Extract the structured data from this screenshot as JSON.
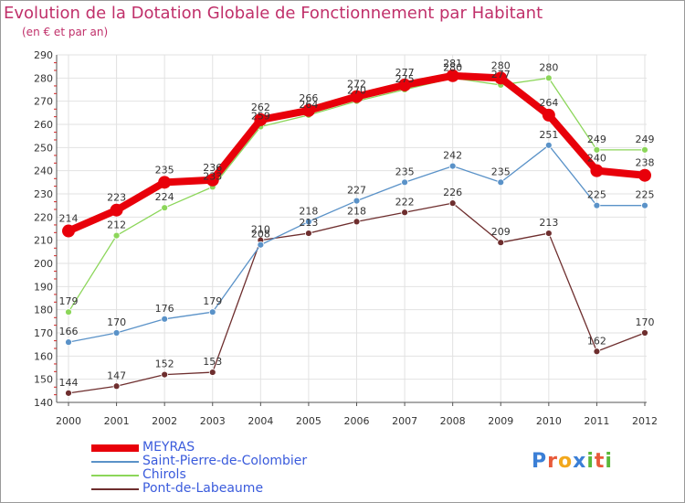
{
  "title": "Evolution de la Dotation Globale de Fonctionnement par Habitant",
  "subtitle": "(en € et par an)",
  "brand": {
    "text": "Proxiti",
    "colors": [
      "#3b7fd6",
      "#e85a3a",
      "#f2a81d",
      "#3b7fd6",
      "#5ab83a",
      "#e85a3a",
      "#5ab83a"
    ]
  },
  "chart_data": {
    "type": "line",
    "title": "Evolution de la Dotation Globale de Fonctionnement par Habitant",
    "ylabel": "(en € et par an)",
    "xlabel": "",
    "categories": [
      "2000",
      "2001",
      "2002",
      "2003",
      "2004",
      "2005",
      "2006",
      "2007",
      "2008",
      "2009",
      "2010",
      "2011",
      "2012"
    ],
    "ylim": [
      140,
      290
    ],
    "yticks": [
      "140",
      "150",
      "160",
      "170",
      "180",
      "190",
      "200",
      "210",
      "220",
      "230",
      "240",
      "250",
      "260",
      "270",
      "280",
      "290"
    ],
    "grid": true,
    "series": [
      {
        "name": "MEYRAS",
        "color": "#e8000a",
        "values": [
          214,
          223,
          235,
          236,
          262,
          266,
          272,
          277,
          281,
          280,
          264,
          240,
          238
        ],
        "labels": [
          "214",
          "223",
          "235",
          "236",
          "262",
          "266",
          "272",
          "277",
          "281",
          "280",
          "264",
          "240",
          "238"
        ]
      },
      {
        "name": "Saint-Pierre-de-Colombier",
        "color": "#5a92c8",
        "values": [
          166,
          170,
          176,
          179,
          208,
          218,
          227,
          235,
          242,
          235,
          251,
          225,
          225
        ],
        "labels": [
          "166",
          "170",
          "176",
          "179",
          "208",
          "218",
          "227",
          "235",
          "242",
          "235",
          "251",
          "225",
          "225"
        ]
      },
      {
        "name": "Chirols",
        "color": "#8cd65a",
        "values": [
          179,
          212,
          224,
          233,
          259,
          264,
          270,
          275,
          280,
          277,
          280,
          249,
          249
        ],
        "labels": [
          "179",
          "212",
          "224",
          "233",
          "259",
          "264",
          "270",
          "275",
          "280",
          "277",
          "280",
          "249",
          "249"
        ]
      },
      {
        "name": "Pont-de-Labeaume",
        "color": "#6e2e2e",
        "values": [
          144,
          147,
          152,
          153,
          210,
          213,
          218,
          222,
          226,
          209,
          213,
          162,
          170
        ],
        "labels": [
          "144",
          "147",
          "152",
          "153",
          "210",
          "213",
          "218",
          "222",
          "226",
          "209",
          "213",
          "162",
          "170"
        ]
      }
    ]
  }
}
